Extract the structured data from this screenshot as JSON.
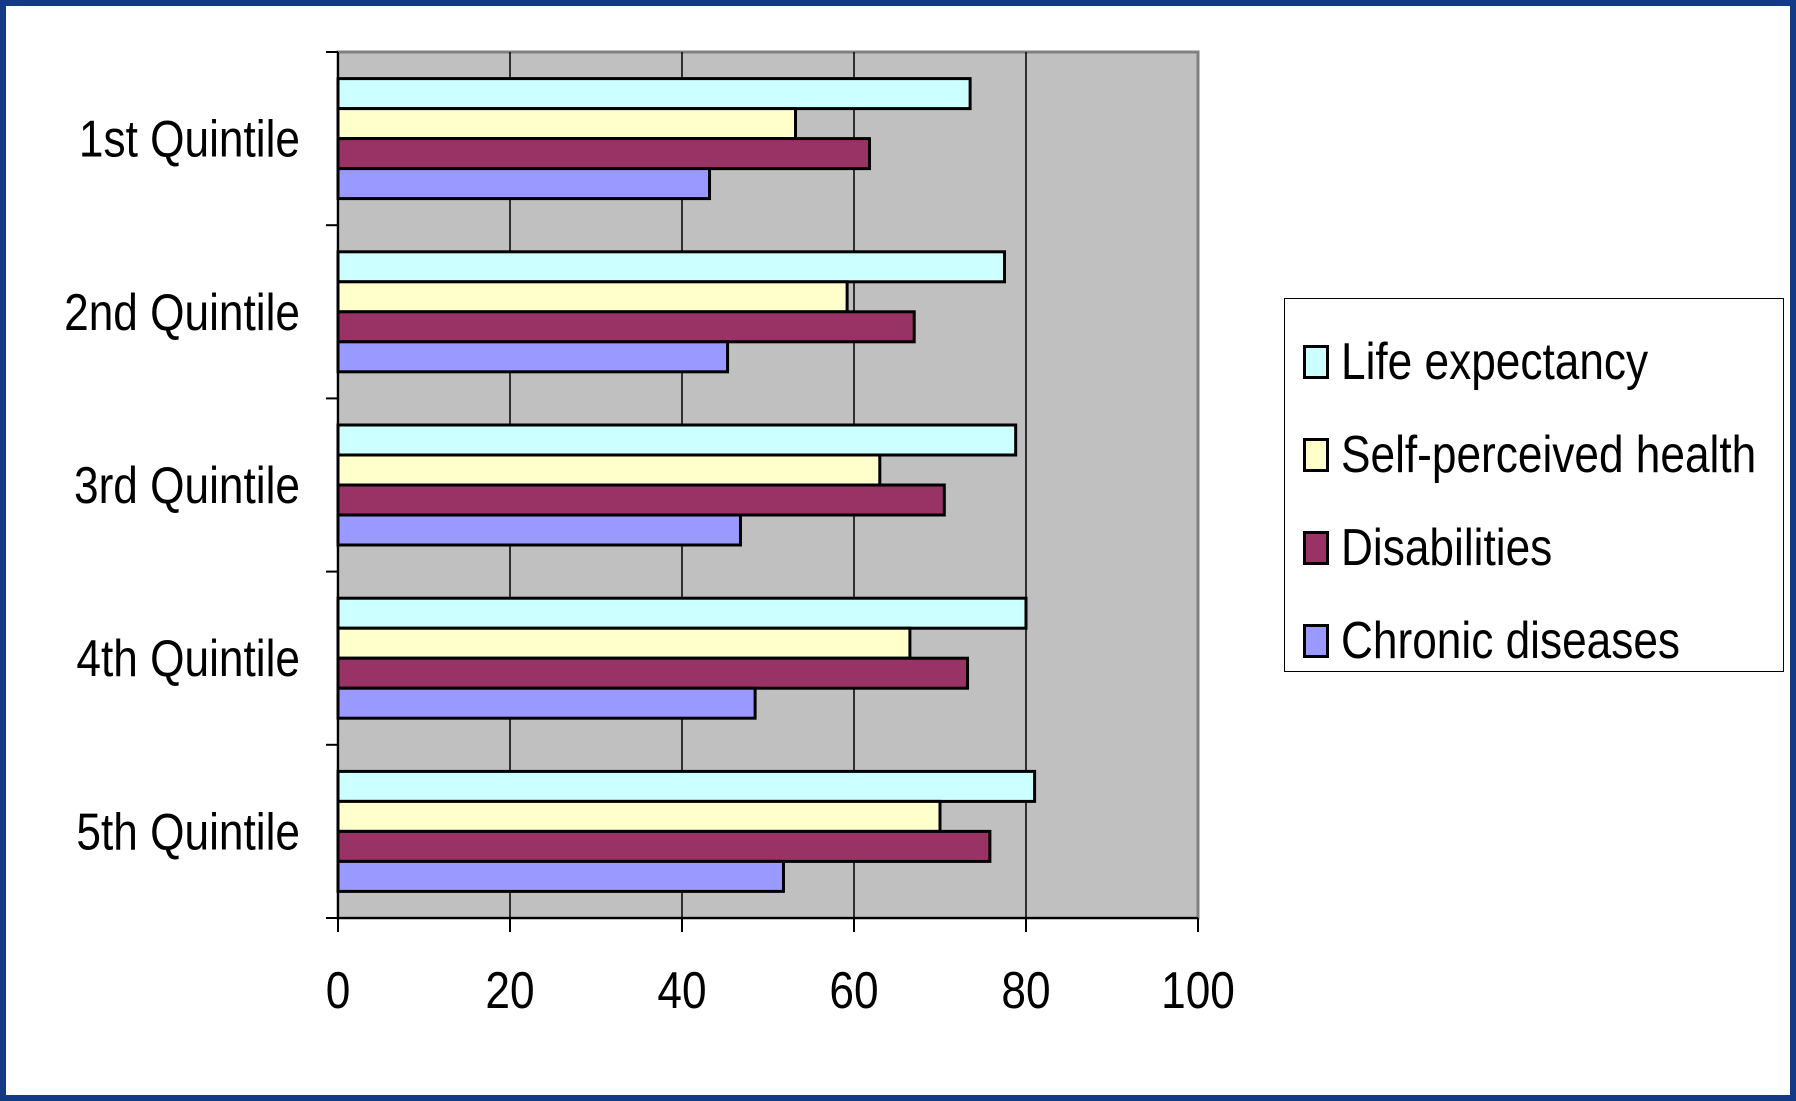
{
  "chart_data": {
    "type": "bar",
    "orientation": "horizontal",
    "title": "",
    "xlabel": "",
    "ylabel": "",
    "categories": [
      "1st Quintile",
      "2nd Quintile",
      "3rd Quintile",
      "4th Quintile",
      "5th Quintile"
    ],
    "series": [
      {
        "name": "Life expectancy",
        "color": "#ccffff",
        "values": [
          73.5,
          77.5,
          78.8,
          80.0,
          81.0
        ]
      },
      {
        "name": "Self-perceived health",
        "color": "#ffffcc",
        "values": [
          53.2,
          59.2,
          63.0,
          66.5,
          70.0
        ]
      },
      {
        "name": "Disabilities",
        "color": "#993366",
        "values": [
          61.8,
          67.0,
          70.5,
          73.2,
          75.8
        ]
      },
      {
        "name": "Chronic diseases",
        "color": "#9999ff",
        "values": [
          43.2,
          45.3,
          46.8,
          48.5,
          51.8
        ]
      }
    ],
    "xlim": [
      0,
      100
    ],
    "xticks": [
      0,
      20,
      40,
      60,
      80,
      100
    ],
    "grid": true,
    "plot_background": "#c0c0c0",
    "legend_position": "right"
  }
}
